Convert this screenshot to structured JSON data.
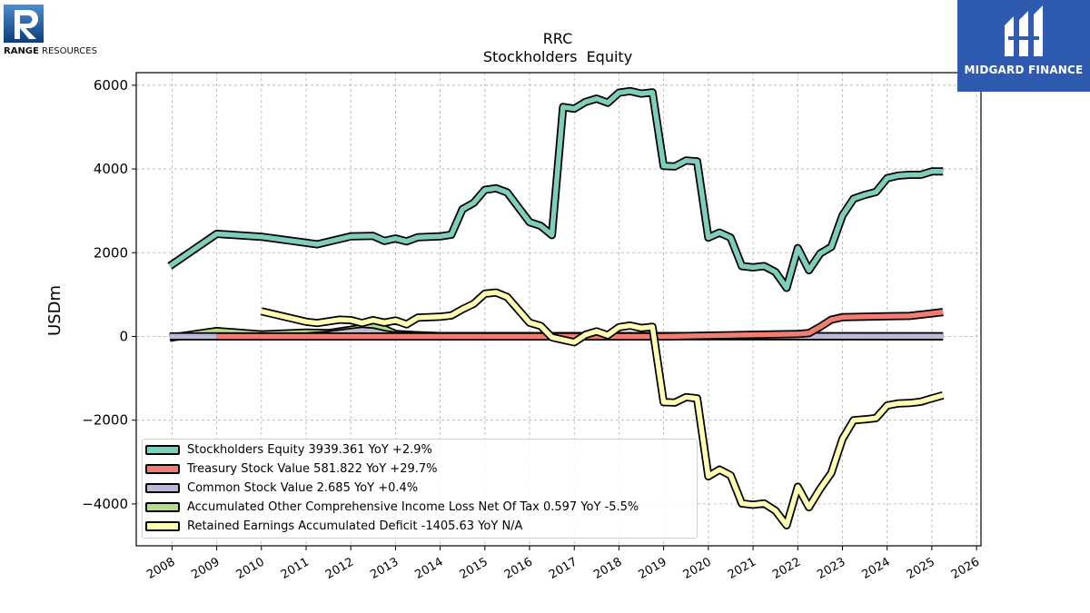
{
  "logos": {
    "left": {
      "brand": "RANGE",
      "suffix": " RESOURCES",
      "colors": [
        "#0f3d7a",
        "#4a8fd0"
      ]
    },
    "right": {
      "text": "MIDGARD FINANCE",
      "background": "#2e5bb0"
    }
  },
  "chart_data": {
    "type": "line",
    "title": "RRC",
    "subtitle": "Stockholders  Equity",
    "ylabel": "USDm",
    "xlabel": "",
    "xlim": [
      2007.2,
      2026.1
    ],
    "ylim": [
      -5000,
      6300
    ],
    "yticks": [
      -4000,
      -2000,
      0,
      2000,
      4000,
      6000
    ],
    "xticks": [
      "2008",
      "2009",
      "2010",
      "2011",
      "2012",
      "2013",
      "2014",
      "2015",
      "2016",
      "2017",
      "2018",
      "2019",
      "2020",
      "2021",
      "2022",
      "2023",
      "2024",
      "2025",
      "2026"
    ],
    "grid": true,
    "legend_position": "lower-left",
    "series": [
      {
        "name": "Stockholders Equity",
        "legend": "Stockholders Equity  3939.361 YoY +2.9%",
        "color": "#7fcdbb",
        "points": [
          [
            2007.95,
            1680
          ],
          [
            2009.0,
            2450
          ],
          [
            2010.0,
            2380
          ],
          [
            2011.25,
            2200
          ],
          [
            2012.0,
            2390
          ],
          [
            2012.5,
            2400
          ],
          [
            2012.75,
            2280
          ],
          [
            2013.0,
            2340
          ],
          [
            2013.25,
            2270
          ],
          [
            2013.5,
            2370
          ],
          [
            2014.0,
            2390
          ],
          [
            2014.25,
            2430
          ],
          [
            2014.5,
            3040
          ],
          [
            2014.75,
            3190
          ],
          [
            2015.0,
            3500
          ],
          [
            2015.25,
            3540
          ],
          [
            2015.5,
            3440
          ],
          [
            2016.0,
            2730
          ],
          [
            2016.25,
            2640
          ],
          [
            2016.5,
            2420
          ],
          [
            2016.75,
            5480
          ],
          [
            2017.0,
            5440
          ],
          [
            2017.25,
            5600
          ],
          [
            2017.5,
            5680
          ],
          [
            2017.75,
            5580
          ],
          [
            2018.0,
            5820
          ],
          [
            2018.25,
            5860
          ],
          [
            2018.5,
            5800
          ],
          [
            2018.75,
            5830
          ],
          [
            2019.0,
            4070
          ],
          [
            2019.25,
            4060
          ],
          [
            2019.5,
            4200
          ],
          [
            2019.75,
            4180
          ],
          [
            2020.0,
            2360
          ],
          [
            2020.25,
            2480
          ],
          [
            2020.5,
            2360
          ],
          [
            2020.75,
            1680
          ],
          [
            2021.0,
            1650
          ],
          [
            2021.25,
            1680
          ],
          [
            2021.5,
            1540
          ],
          [
            2021.75,
            1160
          ],
          [
            2022.0,
            2110
          ],
          [
            2022.25,
            1580
          ],
          [
            2022.5,
            1980
          ],
          [
            2022.75,
            2140
          ],
          [
            2023.0,
            2890
          ],
          [
            2023.25,
            3290
          ],
          [
            2023.5,
            3380
          ],
          [
            2023.75,
            3450
          ],
          [
            2024.0,
            3780
          ],
          [
            2024.25,
            3840
          ],
          [
            2024.5,
            3860
          ],
          [
            2024.75,
            3860
          ],
          [
            2025.0,
            3940
          ],
          [
            2025.25,
            3939.361
          ]
        ]
      },
      {
        "name": "Treasury Stock Value",
        "legend": "Treasury Stock Value  581.822 YoY +29.7%",
        "color": "#f07c72",
        "points": [
          [
            2009.0,
            0
          ],
          [
            2019.0,
            0
          ],
          [
            2022.0,
            60
          ],
          [
            2022.25,
            80
          ],
          [
            2022.5,
            230
          ],
          [
            2022.75,
            400
          ],
          [
            2023.0,
            460
          ],
          [
            2023.5,
            470
          ],
          [
            2024.0,
            480
          ],
          [
            2024.5,
            490
          ],
          [
            2024.75,
            520
          ],
          [
            2025.0,
            550
          ],
          [
            2025.25,
            581.822
          ]
        ]
      },
      {
        "name": "Common Stock Value",
        "legend": "Common Stock Value  2.685 YoY +0.4%",
        "color": "#bcb9d6",
        "points": [
          [
            2007.95,
            2
          ],
          [
            2011.0,
            2
          ],
          [
            2011.5,
            40
          ],
          [
            2012.0,
            110
          ],
          [
            2012.25,
            140
          ],
          [
            2012.5,
            120
          ],
          [
            2012.75,
            60
          ],
          [
            2013.0,
            20
          ],
          [
            2013.5,
            5
          ],
          [
            2014.0,
            3
          ],
          [
            2025.25,
            2.685
          ]
        ]
      },
      {
        "name": "Accumulated Other Comprehensive Income Loss Net Of Tax",
        "legend": "Accumulated Other Comprehensive Income Loss Net Of Tax  0.597 YoY -5.5%",
        "color": "#b2df8a",
        "points": [
          [
            2007.95,
            -30
          ],
          [
            2009.0,
            130
          ],
          [
            2010.0,
            50
          ],
          [
            2011.0,
            90
          ],
          [
            2011.5,
            80
          ],
          [
            2012.0,
            160
          ],
          [
            2012.5,
            240
          ],
          [
            2012.75,
            180
          ],
          [
            2013.0,
            60
          ],
          [
            2013.5,
            30
          ],
          [
            2014.0,
            10
          ],
          [
            2018.0,
            10
          ],
          [
            2025.25,
            0.597
          ]
        ]
      },
      {
        "name": "Retained Earnings Accumulated Deficit",
        "legend": "Retained Earnings Accumulated Deficit  -1405.63 YoY N/A",
        "color": "#ffffb3",
        "points": [
          [
            2010.0,
            600
          ],
          [
            2011.0,
            350
          ],
          [
            2011.25,
            320
          ],
          [
            2011.75,
            400
          ],
          [
            2012.0,
            390
          ],
          [
            2012.25,
            320
          ],
          [
            2012.5,
            390
          ],
          [
            2012.75,
            330
          ],
          [
            2013.0,
            380
          ],
          [
            2013.25,
            290
          ],
          [
            2013.5,
            450
          ],
          [
            2014.0,
            470
          ],
          [
            2014.25,
            500
          ],
          [
            2014.5,
            650
          ],
          [
            2014.75,
            780
          ],
          [
            2015.0,
            1020
          ],
          [
            2015.25,
            1050
          ],
          [
            2015.5,
            940
          ],
          [
            2016.0,
            330
          ],
          [
            2016.25,
            250
          ],
          [
            2016.5,
            -20
          ],
          [
            2016.75,
            -80
          ],
          [
            2017.0,
            -140
          ],
          [
            2017.25,
            40
          ],
          [
            2017.5,
            120
          ],
          [
            2017.75,
            30
          ],
          [
            2018.0,
            220
          ],
          [
            2018.25,
            260
          ],
          [
            2018.5,
            200
          ],
          [
            2018.75,
            230
          ],
          [
            2019.0,
            -1570
          ],
          [
            2019.25,
            -1580
          ],
          [
            2019.5,
            -1450
          ],
          [
            2019.75,
            -1480
          ],
          [
            2020.0,
            -3340
          ],
          [
            2020.25,
            -3180
          ],
          [
            2020.5,
            -3320
          ],
          [
            2020.75,
            -3990
          ],
          [
            2021.0,
            -4020
          ],
          [
            2021.25,
            -3990
          ],
          [
            2021.5,
            -4160
          ],
          [
            2021.75,
            -4510
          ],
          [
            2022.0,
            -3590
          ],
          [
            2022.25,
            -4080
          ],
          [
            2022.5,
            -3640
          ],
          [
            2022.75,
            -3260
          ],
          [
            2023.0,
            -2450
          ],
          [
            2023.25,
            -2000
          ],
          [
            2023.5,
            -1980
          ],
          [
            2023.75,
            -1950
          ],
          [
            2024.0,
            -1650
          ],
          [
            2024.25,
            -1600
          ],
          [
            2024.5,
            -1590
          ],
          [
            2024.75,
            -1560
          ],
          [
            2025.0,
            -1480
          ],
          [
            2025.25,
            -1405.63
          ]
        ]
      }
    ]
  }
}
